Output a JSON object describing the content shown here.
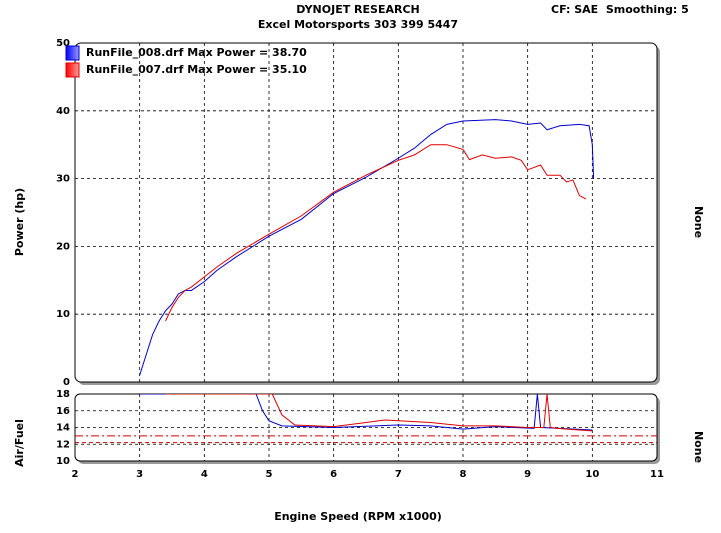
{
  "header": {
    "title": "DYNOJET RESEARCH",
    "subtitle": "Excel Motorsports 303 399 5447",
    "settings": "CF: SAE  Smoothing: 5"
  },
  "xlabel": "Engine Speed (RPM x1000)",
  "chart_data": [
    {
      "type": "line",
      "ylabel": "Power (hp)",
      "y2label": "None",
      "xlim": [
        2,
        11
      ],
      "ylim": [
        0,
        50
      ],
      "yticks": [
        0,
        10,
        20,
        30,
        40,
        50
      ],
      "grid": true,
      "legend": "top-left",
      "series": [
        {
          "name": "RunFile_008.drf Max Power = 38.70",
          "color": "#0000cc",
          "x": [
            3.0,
            3.1,
            3.2,
            3.3,
            3.4,
            3.5,
            3.6,
            3.7,
            3.8,
            4.0,
            4.2,
            4.5,
            5.0,
            5.5,
            6.0,
            6.5,
            7.0,
            7.25,
            7.5,
            7.75,
            8.0,
            8.5,
            8.75,
            9.0,
            9.2,
            9.3,
            9.5,
            9.8,
            9.95,
            10.0,
            10.02
          ],
          "values": [
            1,
            4,
            7,
            9,
            10.5,
            11.5,
            13,
            13.5,
            13.5,
            14.8,
            16.5,
            18.5,
            21.5,
            24,
            27.8,
            30.2,
            33,
            34.5,
            36.5,
            38,
            38.5,
            38.7,
            38.5,
            38,
            38.2,
            37.2,
            37.8,
            38,
            37.8,
            35,
            30
          ]
        },
        {
          "name": "RunFile_007.drf Max Power = 35.10",
          "color": "#dd0000",
          "x": [
            3.4,
            3.5,
            3.6,
            3.7,
            3.8,
            4.0,
            4.2,
            4.5,
            5.0,
            5.5,
            6.0,
            6.5,
            7.0,
            7.25,
            7.5,
            7.75,
            8.0,
            8.1,
            8.3,
            8.5,
            8.75,
            8.9,
            9.0,
            9.2,
            9.3,
            9.5,
            9.6,
            9.7,
            9.8,
            9.9
          ],
          "values": [
            9,
            11,
            12.5,
            13.5,
            14,
            15.5,
            17,
            19,
            21.8,
            24.5,
            28,
            30.5,
            32.7,
            33.5,
            35,
            35,
            34.3,
            32.8,
            33.5,
            33,
            33.2,
            32.7,
            31.3,
            32,
            30.5,
            30.5,
            29.5,
            29.8,
            27.5,
            27
          ]
        }
      ]
    },
    {
      "type": "line",
      "ylabel": "Air/Fuel",
      "y2label": "None",
      "xlim": [
        2,
        11
      ],
      "xticks": [
        2,
        3,
        4,
        5,
        6,
        7,
        8,
        9,
        10,
        11
      ],
      "ylim": [
        10,
        18
      ],
      "yticks": [
        10,
        12,
        14,
        16,
        18
      ],
      "grid": true,
      "reference_lines": [
        {
          "value": 13,
          "color": "#cc0000",
          "style": "dash-dot"
        },
        {
          "value": 12.2,
          "color": "#cc0000",
          "style": "dashed"
        }
      ],
      "series": [
        {
          "color": "#0000cc",
          "x": [
            3.0,
            4.8,
            4.9,
            5.0,
            5.2,
            6.0,
            7.0,
            7.5,
            8.0,
            8.5,
            9.1,
            9.15,
            9.2,
            9.5,
            10.0
          ],
          "values": [
            18,
            18,
            16,
            14.8,
            14.2,
            14,
            14.3,
            14.2,
            13.8,
            14.1,
            13.9,
            18,
            14,
            13.9,
            13.7
          ]
        },
        {
          "color": "#dd0000",
          "x": [
            3.4,
            5.05,
            5.2,
            5.4,
            6.0,
            6.5,
            6.8,
            7.0,
            7.5,
            8.0,
            8.5,
            9.0,
            9.25,
            9.3,
            9.35,
            9.6,
            10.0
          ],
          "values": [
            18,
            18,
            15.5,
            14.3,
            14.1,
            14.6,
            14.9,
            14.8,
            14.6,
            14.2,
            14.2,
            14,
            14,
            18,
            14,
            13.8,
            13.6
          ]
        }
      ]
    }
  ]
}
